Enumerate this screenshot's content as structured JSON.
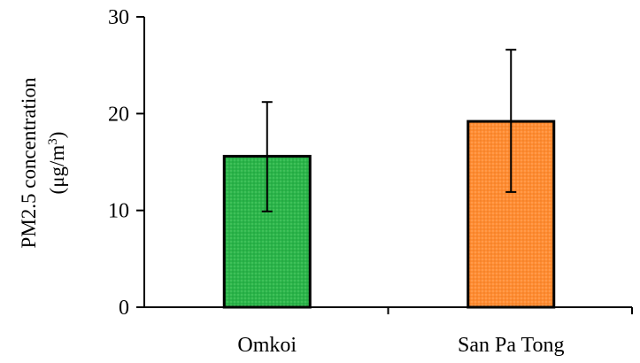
{
  "chart_data": {
    "type": "bar",
    "title": "",
    "xlabel": "",
    "ylabel_line1": "PM2.5 concentration",
    "ylabel_line2_prefix": "(μg/m",
    "ylabel_line2_sup": "3",
    "ylabel_line2_suffix": ")",
    "ylim": [
      0,
      30
    ],
    "yticks": [
      0,
      10,
      20,
      30
    ],
    "categories": [
      "Omkoi",
      "San Pa Tong"
    ],
    "values": [
      15.6,
      19.2
    ],
    "error_low": [
      9.9,
      11.9
    ],
    "error_high": [
      21.2,
      26.6
    ],
    "bar_colors": [
      "#2bb54a",
      "#ff8c32"
    ],
    "grid": false,
    "legend": "none"
  }
}
